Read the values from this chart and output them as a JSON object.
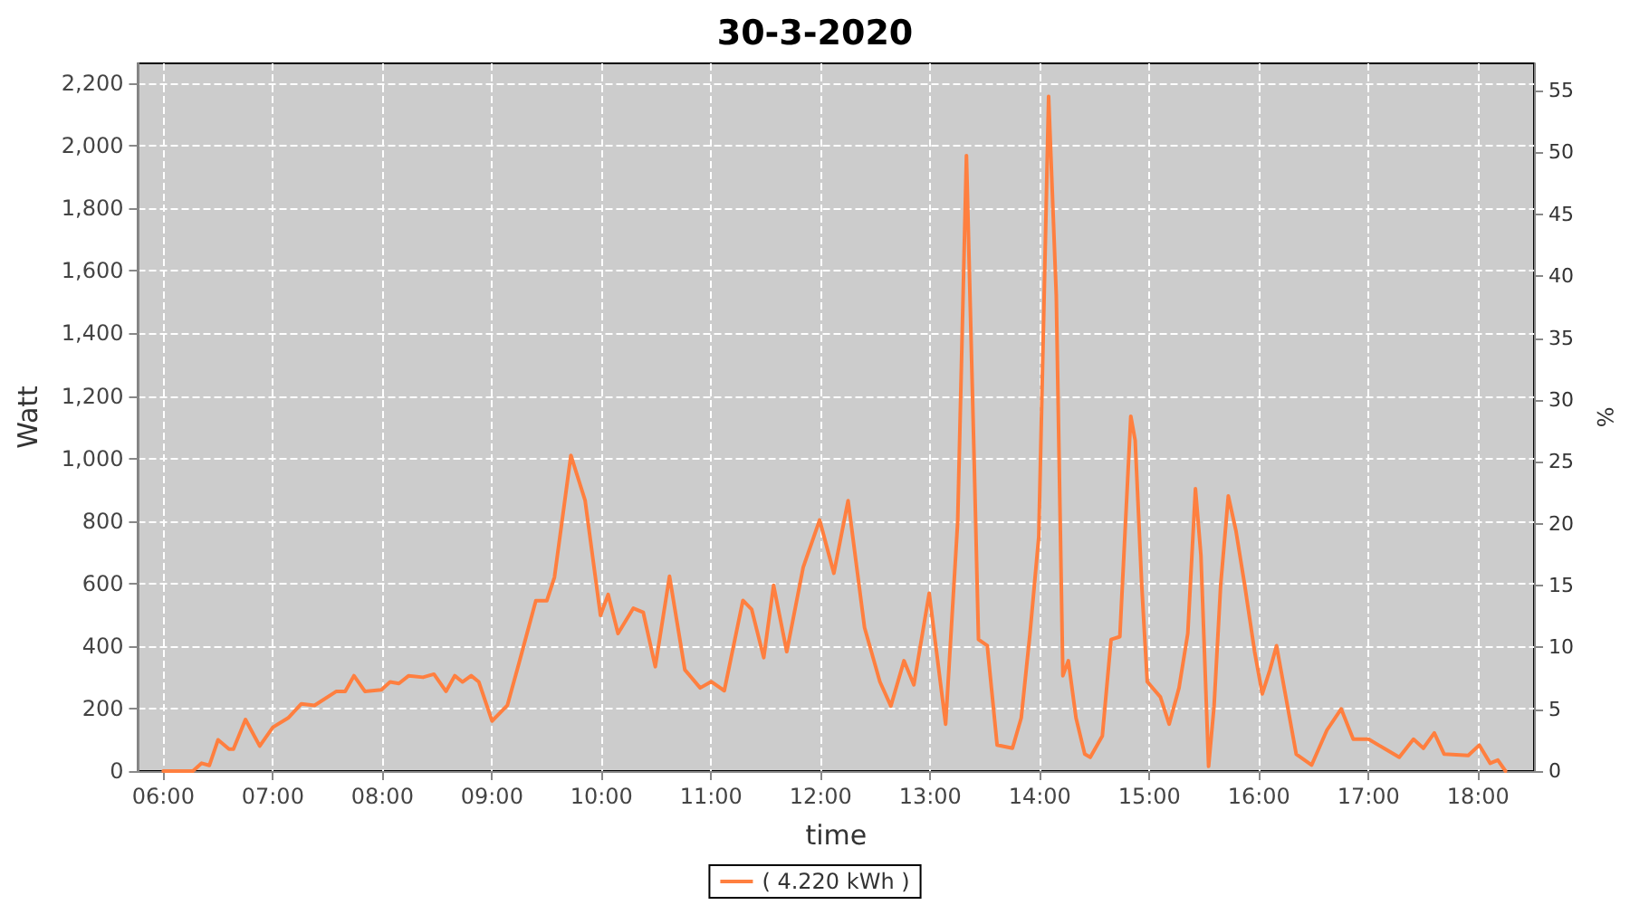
{
  "chart_data": {
    "type": "line",
    "title": "30-3-2020",
    "xlabel": "time",
    "ylabel": "Watt",
    "y2label": "%",
    "xlim": [
      5.77,
      18.51
    ],
    "xticks": [
      {
        "value": 6,
        "label": "06:00"
      },
      {
        "value": 7,
        "label": "07:00"
      },
      {
        "value": 8,
        "label": "08:00"
      },
      {
        "value": 9,
        "label": "09:00"
      },
      {
        "value": 10,
        "label": "10:00"
      },
      {
        "value": 11,
        "label": "11:00"
      },
      {
        "value": 12,
        "label": "12:00"
      },
      {
        "value": 13,
        "label": "13:00"
      },
      {
        "value": 14,
        "label": "14:00"
      },
      {
        "value": 15,
        "label": "15:00"
      },
      {
        "value": 16,
        "label": "16:00"
      },
      {
        "value": 17,
        "label": "17:00"
      },
      {
        "value": 18,
        "label": "18:00"
      }
    ],
    "ylim": [
      0,
      2264
    ],
    "yticks": [
      0,
      200,
      400,
      600,
      800,
      {
        "value": 1000,
        "label": "1,000"
      },
      {
        "value": 1200,
        "label": "1,200"
      },
      {
        "value": 1400,
        "label": "1,400"
      },
      {
        "value": 1600,
        "label": "1,600"
      },
      {
        "value": 1800,
        "label": "1,800"
      },
      {
        "value": 2000,
        "label": "2,000"
      },
      {
        "value": 2200,
        "label": "2,200"
      }
    ],
    "y2lim": [
      0,
      57.2
    ],
    "y2ticks": [
      0,
      5,
      10,
      15,
      20,
      25,
      30,
      35,
      40,
      45,
      50,
      55
    ],
    "grid": true,
    "legend": "bottom",
    "marker": "none",
    "line_style": "solid",
    "series": [
      {
        "name": "( 4.220 kWh )",
        "color": "#ff7f3f",
        "x": [
          6.0,
          6.27,
          6.35,
          6.42,
          6.5,
          6.6,
          6.64,
          6.75,
          6.88,
          7.0,
          7.14,
          7.26,
          7.38,
          7.58,
          7.66,
          7.74,
          7.84,
          7.99,
          8.07,
          8.15,
          8.24,
          8.37,
          8.47,
          8.58,
          8.66,
          8.73,
          8.81,
          8.88,
          9.0,
          9.14,
          9.25,
          9.4,
          9.5,
          9.57,
          9.72,
          9.85,
          9.99,
          10.06,
          10.15,
          10.29,
          10.38,
          10.49,
          10.62,
          10.76,
          10.9,
          11.0,
          11.12,
          11.29,
          11.37,
          11.48,
          11.57,
          11.69,
          11.84,
          11.99,
          12.12,
          12.25,
          12.4,
          12.54,
          12.64,
          12.76,
          12.85,
          12.99,
          13.14,
          13.25,
          13.33,
          13.4,
          13.44,
          13.52,
          13.61,
          13.75,
          13.83,
          13.91,
          13.99,
          14.08,
          14.15,
          14.21,
          14.26,
          14.33,
          14.41,
          14.46,
          14.57,
          14.65,
          14.73,
          14.83,
          14.87,
          14.93,
          14.98,
          15.1,
          15.18,
          15.27,
          15.35,
          15.42,
          15.47,
          15.54,
          15.59,
          15.65,
          15.72,
          15.79,
          15.87,
          15.96,
          16.03,
          16.1,
          16.16,
          16.23,
          16.34,
          16.48,
          16.62,
          16.75,
          16.86,
          17.0,
          17.14,
          17.28,
          17.41,
          17.5,
          17.6,
          17.69,
          17.91,
          18.01,
          18.11,
          18.18,
          18.25
        ],
        "values": [
          0,
          0,
          25,
          18,
          100,
          70,
          70,
          165,
          80,
          140,
          170,
          215,
          210,
          255,
          255,
          305,
          255,
          260,
          285,
          280,
          305,
          300,
          310,
          255,
          305,
          285,
          305,
          285,
          160,
          210,
          350,
          545,
          545,
          620,
          1010,
          865,
          498,
          565,
          440,
          521,
          508,
          334,
          623,
          324,
          266,
          286,
          257,
          546,
          517,
          363,
          594,
          382,
          652,
          803,
          633,
          865,
          459,
          286,
          208,
          353,
          276,
          569,
          150,
          797,
          1969,
          1000,
          421,
          401,
          83,
          73,
          170,
          440,
          749,
          2158,
          1521,
          305,
          353,
          170,
          54,
          44,
          112,
          421,
          430,
          1135,
          1058,
          594,
          286,
          237,
          150,
          266,
          440,
          903,
          691,
          15,
          208,
          594,
          880,
          768,
          594,
          382,
          247,
          324,
          401,
          266,
          54,
          19,
          131,
          199,
          102,
          102,
          73,
          44,
          102,
          73,
          122,
          54,
          50,
          83,
          25,
          35,
          0
        ]
      }
    ]
  }
}
